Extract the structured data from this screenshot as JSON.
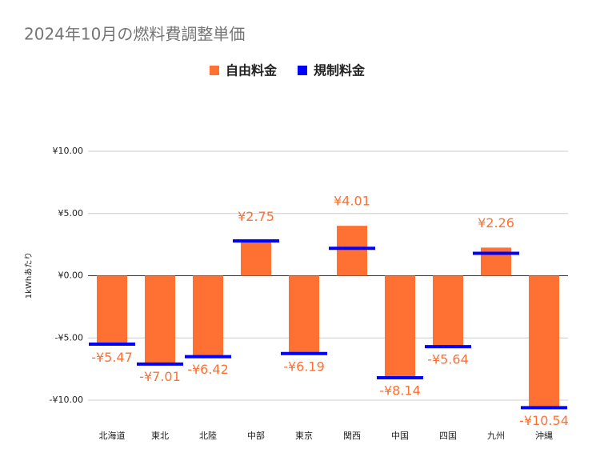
{
  "chart_data": {
    "type": "bar",
    "title": "2024年10月の燃料費調整単価",
    "y_label": "1kWhあたり",
    "categories": [
      "北海道",
      "東北",
      "北陸",
      "中部",
      "東京",
      "関西",
      "中国",
      "四国",
      "九州",
      "沖縄"
    ],
    "series": [
      {
        "name": "自由料金",
        "color": "#ff7033",
        "style": "bar",
        "values": [
          -5.47,
          -7.01,
          -6.42,
          2.75,
          -6.19,
          4.01,
          -8.14,
          -5.64,
          2.26,
          -10.54
        ],
        "value_labels": [
          "-¥5.47",
          "-¥7.01",
          "-¥6.42",
          "¥2.75",
          "-¥6.19",
          "¥4.01",
          "-¥8.14",
          "-¥5.64",
          "¥2.26",
          "-¥10.54"
        ]
      },
      {
        "name": "規制料金",
        "color": "#0000ff",
        "style": "marker",
        "values": [
          -5.5,
          -7.1,
          -6.5,
          2.8,
          -6.25,
          2.2,
          -8.2,
          -5.7,
          1.8,
          -10.6
        ]
      }
    ],
    "ylim": [
      -10,
      10
    ],
    "yticks": [
      {
        "value": -10,
        "label": "-¥10.00"
      },
      {
        "value": -5,
        "label": "-¥5.00"
      },
      {
        "value": 0,
        "label": "¥0.00"
      },
      {
        "value": 5,
        "label": "¥5.00"
      },
      {
        "value": 10,
        "label": "¥10.00"
      }
    ],
    "grid": true
  }
}
